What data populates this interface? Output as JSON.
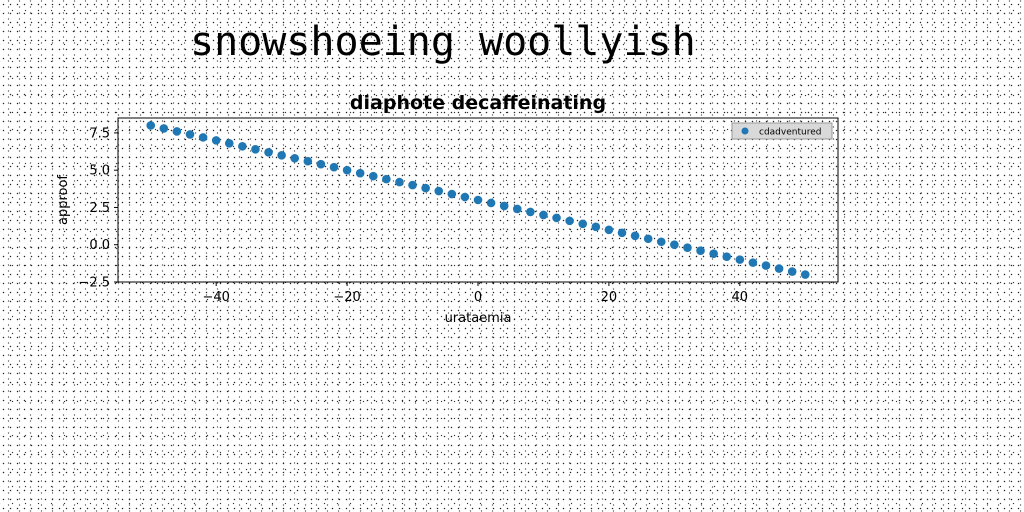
{
  "page": {
    "title": "snowshoeing woollyish"
  },
  "chart_data": {
    "type": "scatter",
    "title": "diaphote decaffeinating",
    "xlabel": "urataemia",
    "ylabel": "approof",
    "xlim": [
      -55,
      55
    ],
    "ylim": [
      -2.5,
      8.5
    ],
    "xticks": [
      -40,
      -20,
      0,
      20,
      40
    ],
    "xtick_labels": [
      "−40",
      "−20",
      "0",
      "20",
      "40"
    ],
    "yticks": [
      -2.5,
      0.0,
      2.5,
      5.0,
      7.5
    ],
    "ytick_labels": [
      "−2.5",
      "0.0",
      "2.5",
      "5.0",
      "7.5"
    ],
    "grid": false,
    "legend_position": "top-right",
    "series": [
      {
        "name": "cdadventured",
        "color": "#1f77b4",
        "marker": "circle",
        "x_start": -50,
        "x_end": 50,
        "point_count": 51,
        "y_start": 8.0,
        "y_end": -2.0
      }
    ]
  }
}
